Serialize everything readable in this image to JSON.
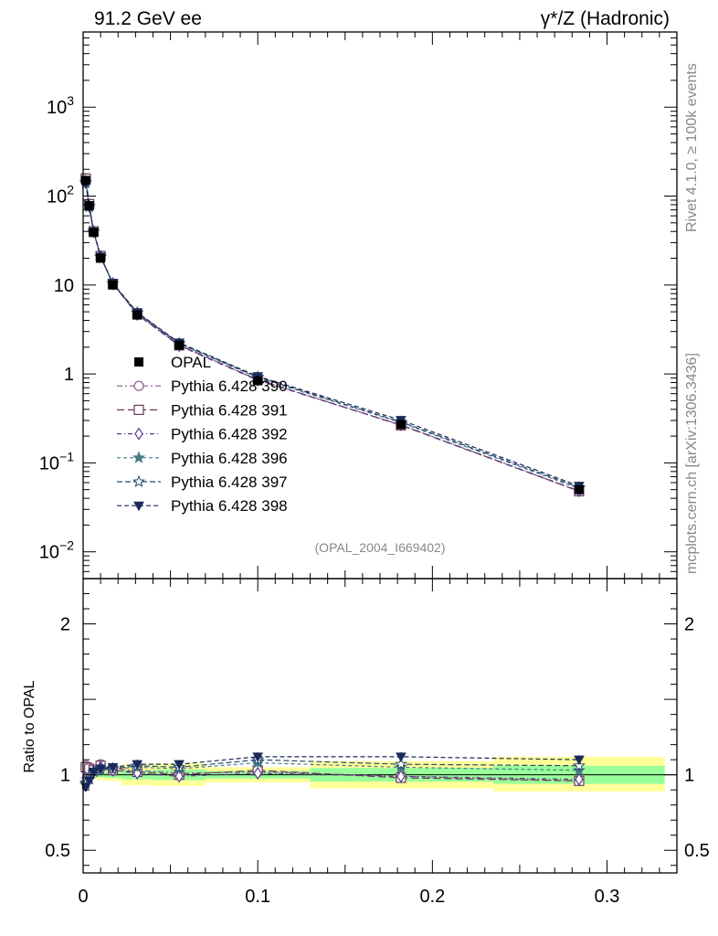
{
  "header": {
    "left": "91.2 GeV ee",
    "right": "γ*/Z (Hadronic)"
  },
  "side_labels": {
    "rivet": "Rivet 4.1.0, ≥ 100k events",
    "mcplots": "mcplots.cern.ch [arXiv:1306.3436]"
  },
  "watermark": "(OPAL_2004_I669402)",
  "ratio_ylabel": "Ratio to OPAL",
  "colors": {
    "p390": "#8a5a88",
    "p391": "#6a3a5a",
    "p392": "#5a3a8a",
    "p396": "#4a7a8a",
    "p397": "#2a4a6a",
    "p398": "#1a2a5a",
    "band_outer": "#ffff99",
    "band_inner": "#99ff99"
  },
  "chart_data": [
    {
      "type": "line",
      "yscale": "log",
      "xlim": [
        0,
        0.34
      ],
      "ylim": [
        0.005,
        7000
      ],
      "ytick_labels": [
        "10^-2",
        "10^-1",
        "1",
        "10",
        "10^2",
        "10^3"
      ],
      "x": [
        0.0015,
        0.0035,
        0.006,
        0.01,
        0.017,
        0.031,
        0.055,
        0.1,
        0.182,
        0.284
      ],
      "opal": [
        150,
        78,
        39,
        20,
        10,
        4.6,
        2.1,
        0.84,
        0.27,
        0.05
      ],
      "series": [
        {
          "name": "Pythia 6.428 390",
          "marker": "circle-open",
          "ratio": [
            1.06,
            1.05,
            1.03,
            1.07,
            1.04,
            1.03,
            1.01,
            1.02,
            0.99,
            0.96
          ]
        },
        {
          "name": "Pythia 6.428 391",
          "marker": "square-open",
          "ratio": [
            1.05,
            1.04,
            1.03,
            1.06,
            1.03,
            1.02,
            1.0,
            1.03,
            0.98,
            0.96
          ]
        },
        {
          "name": "Pythia 6.428 392",
          "marker": "diamond-open",
          "ratio": [
            0.98,
            0.99,
            1.02,
            1.05,
            1.03,
            1.01,
            0.99,
            1.01,
            0.99,
            0.97
          ]
        },
        {
          "name": "Pythia 6.428 396",
          "marker": "star-filled",
          "ratio": [
            0.95,
            0.98,
            1.02,
            1.03,
            1.04,
            1.05,
            1.04,
            1.08,
            1.05,
            1.03
          ]
        },
        {
          "name": "Pythia 6.428 397",
          "marker": "star-open",
          "ratio": [
            0.94,
            0.97,
            1.02,
            1.04,
            1.04,
            1.06,
            1.05,
            1.1,
            1.07,
            1.06
          ]
        },
        {
          "name": "Pythia 6.428 398",
          "marker": "triangle-down-filled",
          "ratio": [
            0.92,
            0.96,
            1.02,
            1.04,
            1.05,
            1.07,
            1.07,
            1.12,
            1.12,
            1.1
          ]
        }
      ],
      "legend": {
        "data_label": "OPAL",
        "placement": "center-left"
      }
    },
    {
      "type": "line",
      "ylabel": "Ratio to OPAL",
      "xlim": [
        0,
        0.34
      ],
      "ylim": [
        0.35,
        2.3
      ],
      "yticks": [
        0.5,
        1,
        2
      ],
      "ytick_labels": [
        "0.5",
        "1",
        "2"
      ],
      "xticks": [
        0,
        0.1,
        0.2,
        0.3
      ],
      "xtick_labels": [
        "0",
        "0.1",
        "0.2",
        "0.3"
      ],
      "bands": [
        {
          "x0": 0.0,
          "x1": 0.002,
          "outer": [
            0.96,
            1.04
          ],
          "inner": [
            0.98,
            1.02
          ]
        },
        {
          "x0": 0.002,
          "x1": 0.005,
          "outer": [
            0.97,
            1.03
          ],
          "inner": [
            0.985,
            1.015
          ]
        },
        {
          "x0": 0.005,
          "x1": 0.008,
          "outer": [
            0.975,
            1.025
          ],
          "inner": [
            0.99,
            1.01
          ]
        },
        {
          "x0": 0.008,
          "x1": 0.012,
          "outer": [
            0.965,
            1.035
          ],
          "inner": [
            0.985,
            1.015
          ]
        },
        {
          "x0": 0.012,
          "x1": 0.022,
          "outer": [
            0.96,
            1.04
          ],
          "inner": [
            0.98,
            1.02
          ]
        },
        {
          "x0": 0.022,
          "x1": 0.04,
          "outer": [
            0.93,
            1.07
          ],
          "inner": [
            0.97,
            1.03
          ]
        },
        {
          "x0": 0.04,
          "x1": 0.07,
          "outer": [
            0.925,
            1.075
          ],
          "inner": [
            0.965,
            1.035
          ]
        },
        {
          "x0": 0.07,
          "x1": 0.13,
          "outer": [
            0.95,
            1.05
          ],
          "inner": [
            0.975,
            1.025
          ]
        },
        {
          "x0": 0.13,
          "x1": 0.235,
          "outer": [
            0.91,
            1.09
          ],
          "inner": [
            0.955,
            1.045
          ]
        },
        {
          "x0": 0.235,
          "x1": 0.333,
          "outer": [
            0.89,
            1.12
          ],
          "inner": [
            0.94,
            1.06
          ]
        }
      ]
    }
  ]
}
